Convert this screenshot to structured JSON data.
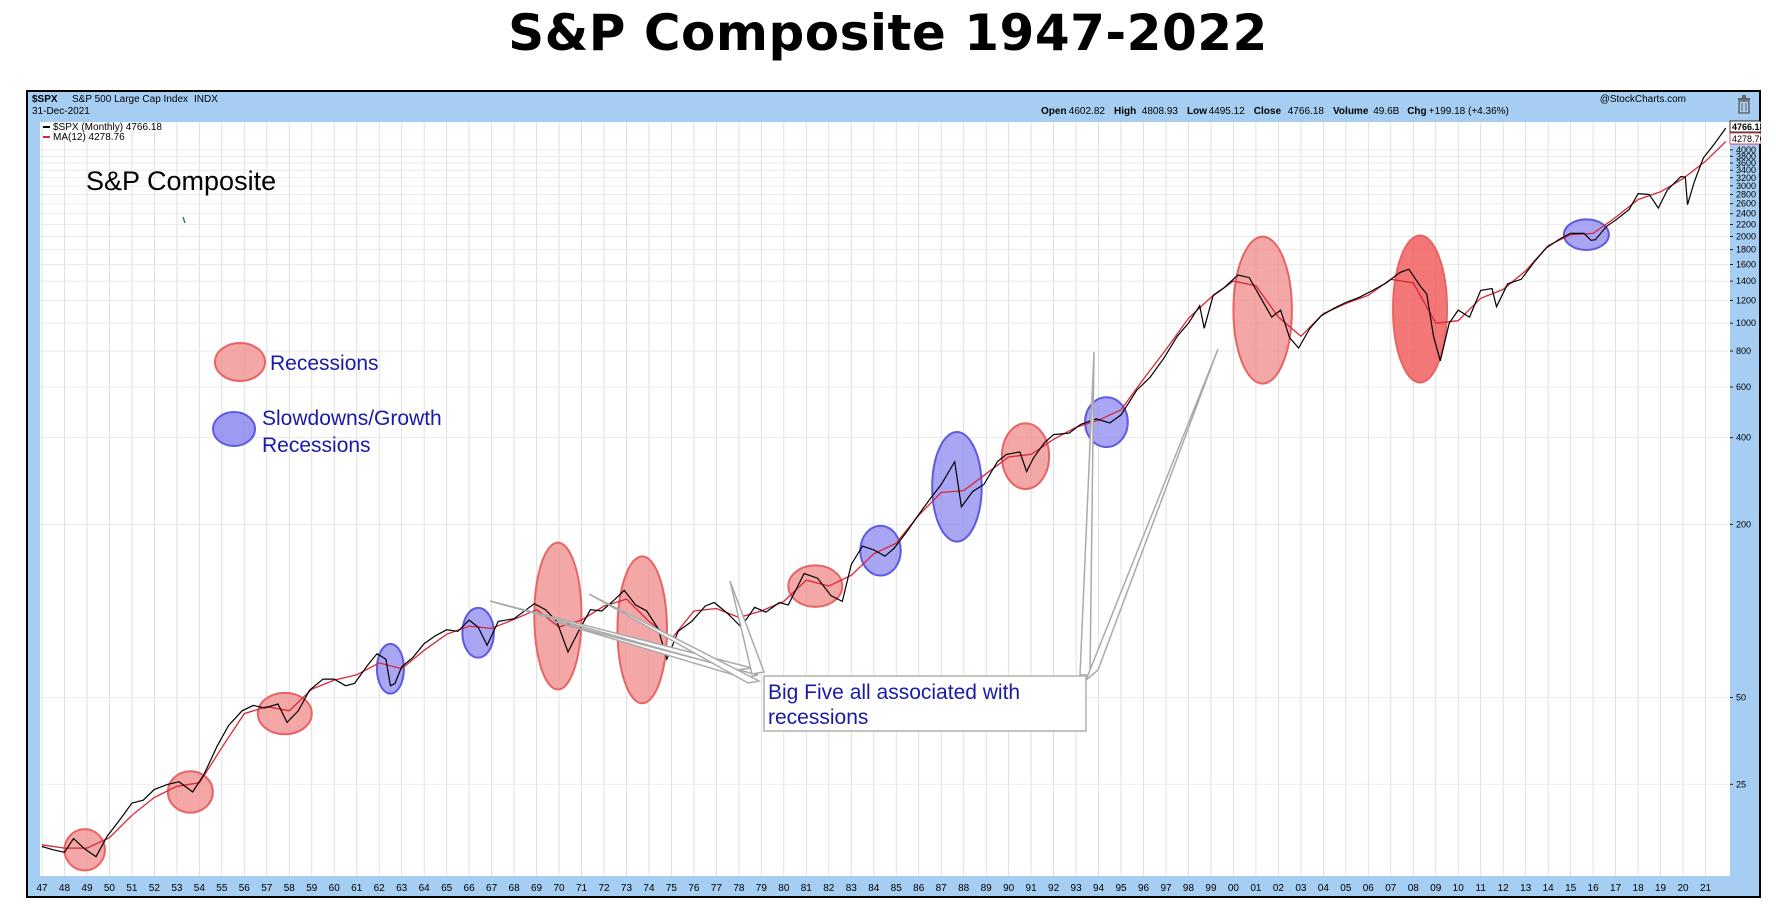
{
  "page_title": "S&P Composite 1947-2022",
  "header": {
    "symbol": "$SPX",
    "name": "S&P 500 Large Cap Index",
    "exchange": "INDX",
    "date": "31-Dec-2021",
    "watermark": "@StockCharts.com",
    "ohlc": [
      {
        "label": "Open",
        "value": "4602.82"
      },
      {
        "label": "High",
        "value": "4808.93"
      },
      {
        "label": "Low",
        "value": "4495.12"
      },
      {
        "label": "Close",
        "value": "4766.18"
      },
      {
        "label": "Volume",
        "value": "49.6B"
      },
      {
        "label": "Chg",
        "value": "+199.18 (+4.36%)"
      }
    ],
    "legend_price": "$SPX (Monthly) 4766.18",
    "legend_ma": "MA(12) 4278.76",
    "last_price_tag": "4766.18",
    "last_ma_tag": "4278.76"
  },
  "annotations": {
    "inner_title": "S&P Composite",
    "legend_recessions": "Recessions",
    "legend_slowdowns_line1": "Slowdowns/Growth",
    "legend_slowdowns_line2": "Recessions",
    "callout_line1": "Big Five all associated with",
    "callout_line2": "recessions"
  },
  "colors": {
    "background_blue": "#a6cdf2",
    "price_line": "#000000",
    "ma_line": "#d8263a",
    "recession_fill": "#f08a8a",
    "recession_stroke": "#e86464",
    "recession_strong": "#f04a4a",
    "slowdown_fill": "#8c88f0",
    "slowdown_stroke": "#5f5ae0",
    "legend_text": "#1a1aa8"
  },
  "chart_data": {
    "type": "line",
    "title": "S&P Composite 1947-2022",
    "y_scale": "log",
    "ylim": [
      12,
      5000
    ],
    "xlim": [
      1947,
      2022
    ],
    "y_ticks": [
      4000,
      3800,
      3600,
      3400,
      3200,
      3000,
      2800,
      2600,
      2400,
      2200,
      2000,
      1800,
      1600,
      1400,
      1200,
      1000,
      800,
      600,
      400,
      200,
      50,
      25
    ],
    "x_tick_labels": [
      "47",
      "48",
      "49",
      "50",
      "51",
      "52",
      "53",
      "54",
      "55",
      "56",
      "57",
      "58",
      "59",
      "60",
      "61",
      "62",
      "63",
      "64",
      "65",
      "66",
      "67",
      "68",
      "69",
      "70",
      "71",
      "72",
      "73",
      "74",
      "75",
      "76",
      "77",
      "78",
      "79",
      "80",
      "81",
      "82",
      "83",
      "84",
      "85",
      "86",
      "87",
      "88",
      "89",
      "90",
      "91",
      "92",
      "93",
      "94",
      "95",
      "96",
      "97",
      "98",
      "99",
      "00",
      "01",
      "02",
      "03",
      "04",
      "05",
      "06",
      "07",
      "08",
      "09",
      "10",
      "11",
      "12",
      "13",
      "14",
      "15",
      "16",
      "17",
      "18",
      "19",
      "20",
      "21"
    ],
    "series": [
      {
        "name": "$SPX (Monthly)",
        "color": "#000000",
        "points": [
          [
            1947.0,
            15.2
          ],
          [
            1947.5,
            14.8
          ],
          [
            1948.0,
            14.5
          ],
          [
            1948.4,
            16.2
          ],
          [
            1948.9,
            14.9
          ],
          [
            1949.4,
            14.0
          ],
          [
            1949.9,
            16.5
          ],
          [
            1950.5,
            19.0
          ],
          [
            1951.0,
            21.5
          ],
          [
            1951.5,
            22.0
          ],
          [
            1952.0,
            24.0
          ],
          [
            1952.6,
            25.0
          ],
          [
            1953.1,
            25.5
          ],
          [
            1953.7,
            23.5
          ],
          [
            1954.2,
            27.0
          ],
          [
            1954.8,
            34.0
          ],
          [
            1955.3,
            40.0
          ],
          [
            1955.9,
            45.0
          ],
          [
            1956.4,
            47.0
          ],
          [
            1956.9,
            46.0
          ],
          [
            1957.5,
            47.5
          ],
          [
            1957.9,
            41.0
          ],
          [
            1958.4,
            45.0
          ],
          [
            1958.9,
            53.0
          ],
          [
            1959.5,
            58.0
          ],
          [
            1960.0,
            58.0
          ],
          [
            1960.5,
            55.0
          ],
          [
            1960.9,
            56.0
          ],
          [
            1961.5,
            65.0
          ],
          [
            1961.9,
            71.0
          ],
          [
            1962.3,
            68.0
          ],
          [
            1962.5,
            55.0
          ],
          [
            1962.7,
            56.0
          ],
          [
            1963.0,
            64.0
          ],
          [
            1963.5,
            69.0
          ],
          [
            1964.0,
            77.0
          ],
          [
            1964.5,
            82.0
          ],
          [
            1965.0,
            86.0
          ],
          [
            1965.5,
            85.0
          ],
          [
            1966.0,
            93.0
          ],
          [
            1966.4,
            88.0
          ],
          [
            1966.8,
            76.0
          ],
          [
            1967.3,
            92.0
          ],
          [
            1968.0,
            94.0
          ],
          [
            1968.9,
            106.0
          ],
          [
            1969.4,
            101.0
          ],
          [
            1969.9,
            92.0
          ],
          [
            1970.4,
            72.0
          ],
          [
            1970.9,
            86.0
          ],
          [
            1971.4,
            101.0
          ],
          [
            1971.9,
            100.0
          ],
          [
            1972.5,
            110.0
          ],
          [
            1972.9,
            118.0
          ],
          [
            1973.4,
            105.0
          ],
          [
            1973.9,
            100.0
          ],
          [
            1974.4,
            87.0
          ],
          [
            1974.8,
            68.0
          ],
          [
            1975.3,
            85.0
          ],
          [
            1975.9,
            92.0
          ],
          [
            1976.5,
            104.0
          ],
          [
            1976.9,
            107.0
          ],
          [
            1977.5,
            98.0
          ],
          [
            1978.1,
            88.0
          ],
          [
            1978.7,
            103.0
          ],
          [
            1979.2,
            99.0
          ],
          [
            1979.8,
            107.0
          ],
          [
            1980.2,
            105.0
          ],
          [
            1980.9,
            135.0
          ],
          [
            1981.5,
            130.0
          ],
          [
            1982.1,
            113.0
          ],
          [
            1982.6,
            108.0
          ],
          [
            1983.0,
            145.0
          ],
          [
            1983.5,
            168.0
          ],
          [
            1984.0,
            163.0
          ],
          [
            1984.5,
            155.0
          ],
          [
            1984.9,
            165.0
          ],
          [
            1985.5,
            190.0
          ],
          [
            1985.9,
            211.0
          ],
          [
            1986.5,
            245.0
          ],
          [
            1987.0,
            275.0
          ],
          [
            1987.6,
            330.0
          ],
          [
            1987.9,
            230.0
          ],
          [
            1988.4,
            260.0
          ],
          [
            1988.9,
            275.0
          ],
          [
            1989.5,
            330.0
          ],
          [
            1989.9,
            350.0
          ],
          [
            1990.5,
            357.0
          ],
          [
            1990.8,
            305.0
          ],
          [
            1991.1,
            340.0
          ],
          [
            1991.6,
            385.0
          ],
          [
            1992.0,
            410.0
          ],
          [
            1992.7,
            415.0
          ],
          [
            1993.2,
            445.0
          ],
          [
            1993.9,
            465.0
          ],
          [
            1994.5,
            450.0
          ],
          [
            1995.0,
            480.0
          ],
          [
            1995.7,
            585.0
          ],
          [
            1996.3,
            650.0
          ],
          [
            1996.9,
            755.0
          ],
          [
            1997.5,
            900.0
          ],
          [
            1998.0,
            1000.0
          ],
          [
            1998.5,
            1150.0
          ],
          [
            1998.7,
            960.0
          ],
          [
            1999.1,
            1250.0
          ],
          [
            1999.6,
            1330.0
          ],
          [
            2000.2,
            1470.0
          ],
          [
            2000.7,
            1440.0
          ],
          [
            2001.2,
            1230.0
          ],
          [
            2001.7,
            1050.0
          ],
          [
            2002.1,
            1110.0
          ],
          [
            2002.5,
            890.0
          ],
          [
            2002.9,
            820.0
          ],
          [
            2003.4,
            960.0
          ],
          [
            2003.9,
            1060.0
          ],
          [
            2004.5,
            1130.0
          ],
          [
            2005.0,
            1180.0
          ],
          [
            2005.6,
            1230.0
          ],
          [
            2006.2,
            1300.0
          ],
          [
            2006.8,
            1380.0
          ],
          [
            2007.4,
            1500.0
          ],
          [
            2007.8,
            1540.0
          ],
          [
            2008.3,
            1350.0
          ],
          [
            2008.6,
            1260.0
          ],
          [
            2008.9,
            900.0
          ],
          [
            2009.2,
            740.0
          ],
          [
            2009.6,
            1000.0
          ],
          [
            2010.0,
            1110.0
          ],
          [
            2010.5,
            1050.0
          ],
          [
            2011.0,
            1300.0
          ],
          [
            2011.5,
            1320.0
          ],
          [
            2011.7,
            1140.0
          ],
          [
            2012.2,
            1370.0
          ],
          [
            2012.8,
            1420.0
          ],
          [
            2013.4,
            1640.0
          ],
          [
            2013.9,
            1820.0
          ],
          [
            2014.5,
            1960.0
          ],
          [
            2015.0,
            2050.0
          ],
          [
            2015.6,
            2050.0
          ],
          [
            2015.9,
            1940.0
          ],
          [
            2016.1,
            1950.0
          ],
          [
            2016.6,
            2170.0
          ],
          [
            2017.0,
            2280.0
          ],
          [
            2017.6,
            2480.0
          ],
          [
            2018.0,
            2820.0
          ],
          [
            2018.5,
            2800.0
          ],
          [
            2018.9,
            2510.0
          ],
          [
            2019.3,
            2900.0
          ],
          [
            2019.9,
            3230.0
          ],
          [
            2020.1,
            3220.0
          ],
          [
            2020.2,
            2580.0
          ],
          [
            2020.5,
            3100.0
          ],
          [
            2020.9,
            3750.0
          ],
          [
            2021.4,
            4200.0
          ],
          [
            2021.9,
            4766.0
          ]
        ]
      },
      {
        "name": "MA(12)",
        "color": "#d8263a",
        "points": [
          [
            1947.0,
            15.4
          ],
          [
            1948.0,
            15.0
          ],
          [
            1949.0,
            15.0
          ],
          [
            1950.0,
            16.3
          ],
          [
            1951.0,
            19.5
          ],
          [
            1952.0,
            22.5
          ],
          [
            1953.0,
            24.6
          ],
          [
            1954.0,
            25.3
          ],
          [
            1955.0,
            33.5
          ],
          [
            1956.0,
            44.0
          ],
          [
            1957.0,
            46.5
          ],
          [
            1958.0,
            45.0
          ],
          [
            1959.0,
            53.5
          ],
          [
            1960.0,
            57.5
          ],
          [
            1961.0,
            60.0
          ],
          [
            1962.0,
            66.0
          ],
          [
            1963.0,
            63.0
          ],
          [
            1964.0,
            73.0
          ],
          [
            1965.0,
            83.0
          ],
          [
            1966.0,
            88.5
          ],
          [
            1967.0,
            87.0
          ],
          [
            1968.0,
            93.5
          ],
          [
            1969.0,
            101.0
          ],
          [
            1970.0,
            88.0
          ],
          [
            1971.0,
            93.0
          ],
          [
            1972.0,
            104.0
          ],
          [
            1973.0,
            110.0
          ],
          [
            1974.0,
            92.0
          ],
          [
            1975.0,
            80.0
          ],
          [
            1976.0,
            100.0
          ],
          [
            1977.0,
            102.0
          ],
          [
            1978.0,
            95.0
          ],
          [
            1979.0,
            100.0
          ],
          [
            1980.0,
            108.0
          ],
          [
            1981.0,
            128.0
          ],
          [
            1982.0,
            122.0
          ],
          [
            1983.0,
            133.0
          ],
          [
            1984.0,
            158.0
          ],
          [
            1985.0,
            172.0
          ],
          [
            1986.0,
            215.0
          ],
          [
            1987.0,
            258.0
          ],
          [
            1988.0,
            262.0
          ],
          [
            1989.0,
            300.0
          ],
          [
            1990.0,
            343.0
          ],
          [
            1991.0,
            350.0
          ],
          [
            1992.0,
            395.0
          ],
          [
            1993.0,
            435.0
          ],
          [
            1994.0,
            460.0
          ],
          [
            1995.0,
            500.0
          ],
          [
            1996.0,
            640.0
          ],
          [
            1997.0,
            810.0
          ],
          [
            1998.0,
            1040.0
          ],
          [
            1999.0,
            1230.0
          ],
          [
            2000.0,
            1400.0
          ],
          [
            2001.0,
            1350.0
          ],
          [
            2002.0,
            1050.0
          ],
          [
            2003.0,
            900.0
          ],
          [
            2004.0,
            1080.0
          ],
          [
            2005.0,
            1170.0
          ],
          [
            2006.0,
            1250.0
          ],
          [
            2007.0,
            1420.0
          ],
          [
            2008.0,
            1380.0
          ],
          [
            2009.0,
            1000.0
          ],
          [
            2010.0,
            1020.0
          ],
          [
            2011.0,
            1220.0
          ],
          [
            2012.0,
            1310.0
          ],
          [
            2013.0,
            1520.0
          ],
          [
            2014.0,
            1860.0
          ],
          [
            2015.0,
            2030.0
          ],
          [
            2016.0,
            2050.0
          ],
          [
            2017.0,
            2330.0
          ],
          [
            2018.0,
            2690.0
          ],
          [
            2019.0,
            2860.0
          ],
          [
            2020.0,
            3180.0
          ],
          [
            2021.0,
            3650.0
          ],
          [
            2021.9,
            4278.8
          ]
        ]
      }
    ],
    "recessions": [
      {
        "start": 1948.0,
        "end": 1949.8,
        "level": 14.8
      },
      {
        "start": 1952.6,
        "end": 1954.6,
        "level": 23.5
      },
      {
        "start": 1956.6,
        "end": 1959.0,
        "level": 44.0
      },
      {
        "start": 1968.9,
        "end": 1971.0,
        "level": 96.0
      },
      {
        "start": 1972.6,
        "end": 1974.8,
        "level": 86.0
      },
      {
        "start": 1980.2,
        "end": 1982.6,
        "level": 122.0
      },
      {
        "start": 1989.7,
        "end": 1991.8,
        "level": 345.0
      },
      {
        "start": 2000.0,
        "end": 2002.6,
        "level": 1110.0
      },
      {
        "start": 2007.1,
        "end": 2009.5,
        "level": 1120.0
      }
    ],
    "slowdowns": [
      {
        "start": 1961.9,
        "end": 1963.1,
        "level": 63.0
      },
      {
        "start": 1965.7,
        "end": 1967.1,
        "level": 84.0
      },
      {
        "start": 1983.4,
        "end": 1985.2,
        "level": 162.0
      },
      {
        "start": 1986.6,
        "end": 1988.8,
        "level": 270.0
      },
      {
        "start": 1993.4,
        "end": 1995.3,
        "level": 453.0
      },
      {
        "start": 2014.7,
        "end": 2016.7,
        "level": 2030.0
      }
    ]
  }
}
